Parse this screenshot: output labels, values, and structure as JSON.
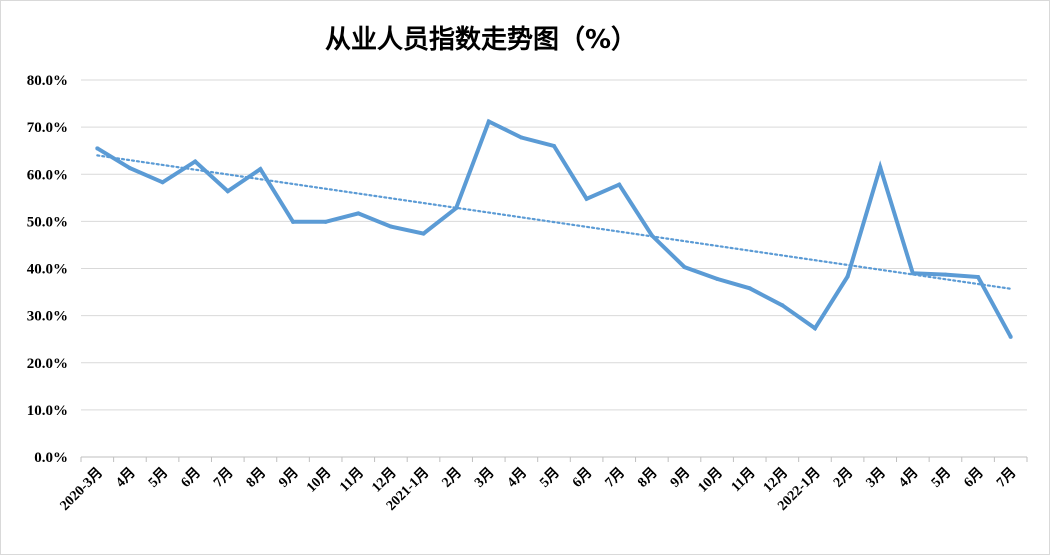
{
  "chart_data": {
    "type": "line",
    "title": "从业人员指数走势图（%）",
    "xlabel": "",
    "ylabel": "",
    "categories": [
      "2020-3月",
      "4月",
      "5月",
      "6月",
      "7月",
      "8月",
      "9月",
      "10月",
      "11月",
      "12月",
      "2021-1月",
      "2月",
      "3月",
      "4月",
      "5月",
      "6月",
      "7月",
      "8月",
      "9月",
      "10月",
      "11月",
      "12月",
      "2022-1月",
      "2月",
      "3月",
      "4月",
      "5月",
      "6月",
      "7月"
    ],
    "series": [
      {
        "values": [
          65.5,
          61.3,
          58.3,
          62.7,
          56.4,
          61.1,
          49.9,
          49.9,
          51.7,
          48.9,
          47.4,
          52.8,
          71.2,
          67.8,
          66.0,
          54.8,
          57.8,
          47.0,
          40.3,
          37.8,
          35.8,
          32.2,
          27.3,
          38.3,
          61.5,
          39.0,
          38.7,
          38.2,
          25.5
        ],
        "color": "#5b9bd5"
      }
    ],
    "trendline": {
      "type": "linear",
      "style": "dotted",
      "color": "#5b9bd5",
      "start": 64.0,
      "end": 35.7
    },
    "ylim": [
      0,
      80
    ],
    "yticks": [
      0,
      10,
      20,
      30,
      40,
      50,
      60,
      70,
      80
    ],
    "ytick_labels": [
      "0.0%",
      "10.0%",
      "20.0%",
      "30.0%",
      "40.0%",
      "50.0%",
      "60.0%",
      "70.0%",
      "80.0%"
    ],
    "grid": true,
    "legend": "none"
  }
}
